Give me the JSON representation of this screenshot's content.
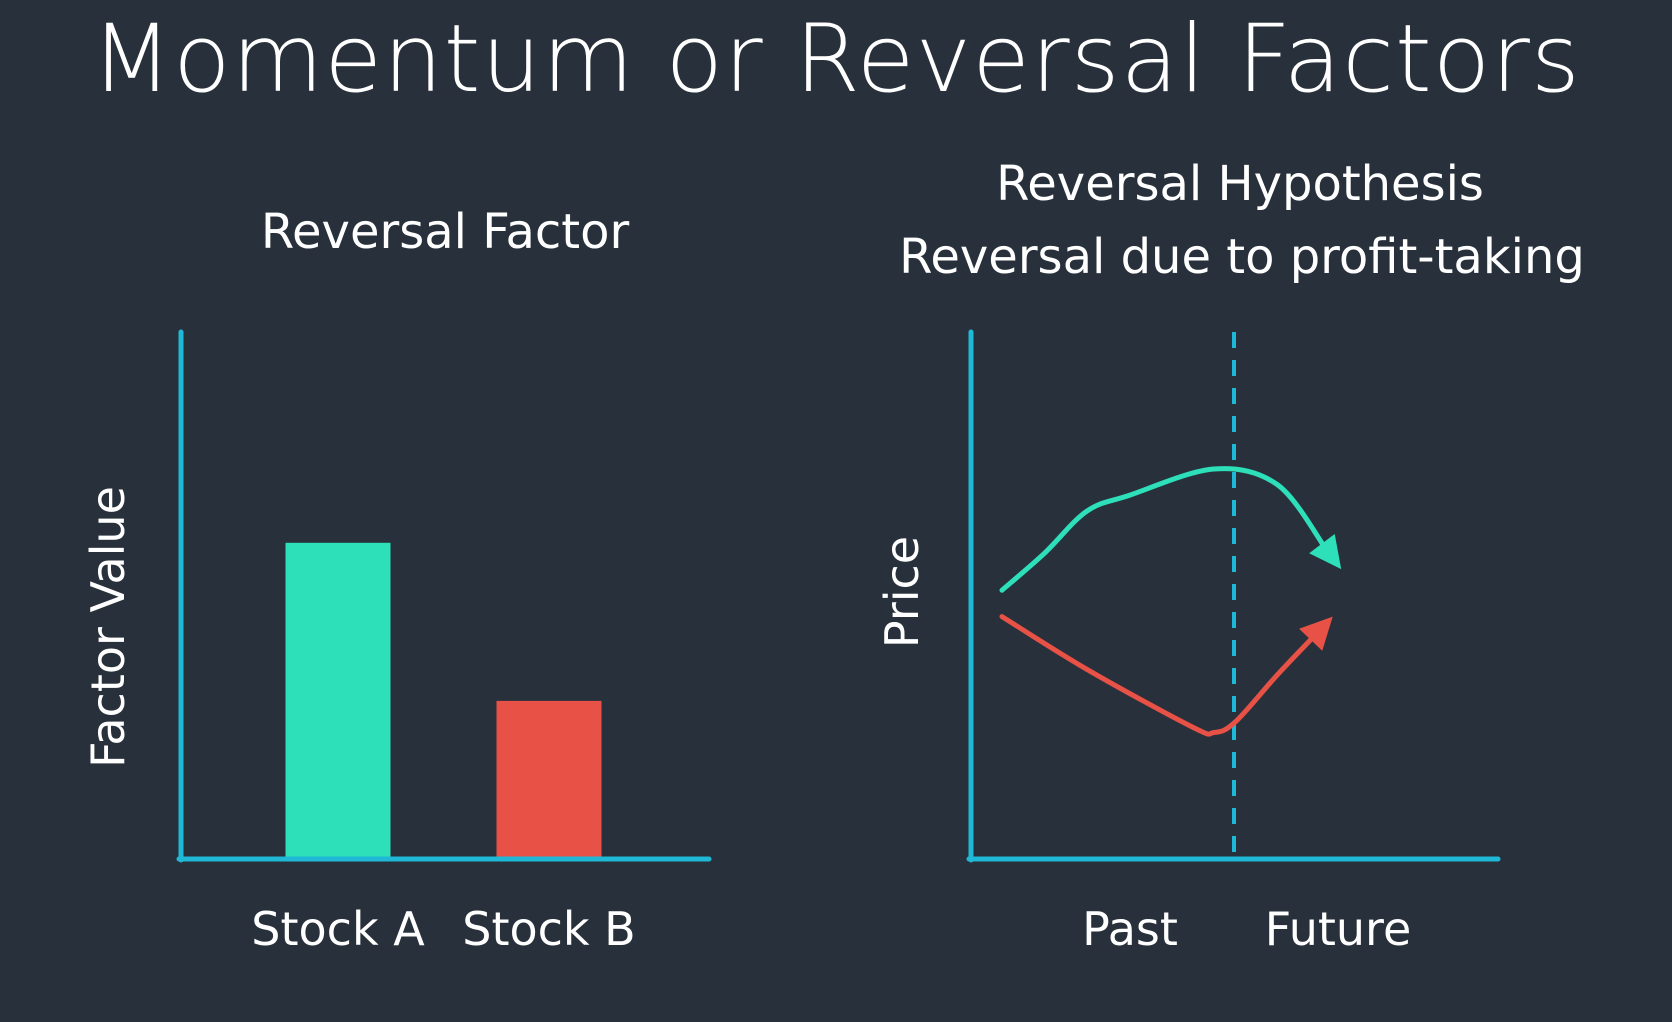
{
  "slide": {
    "title": "Momentum or Reversal Factors"
  },
  "colors": {
    "background": "#28313b",
    "axis": "#1fb8d6",
    "stock_a": "#2de0b9",
    "stock_b": "#e85146",
    "text": "#ffffff"
  },
  "chart_data": [
    {
      "type": "bar",
      "title": "Reversal Factor",
      "ylabel": "Factor Value",
      "xlabel": "",
      "categories": [
        "Stock A",
        "Stock B"
      ],
      "values": [
        0.6,
        0.3
      ],
      "ylim": [
        0,
        1
      ],
      "grid": false,
      "bar_colors": [
        "#2de0b9",
        "#e85146"
      ]
    },
    {
      "type": "line",
      "title": "Reversal Hypothesis",
      "subtitle": "Reversal due to profit-taking",
      "ylabel": "Price",
      "x_regions": [
        "Past",
        "Future"
      ],
      "divider": "dashed vertical line between Past and Future",
      "ylim": [
        0,
        1
      ],
      "grid": false,
      "series": [
        {
          "color": "#2de0b9",
          "arrow_end": true,
          "points": [
            [
              0,
              0.51
            ],
            [
              0.1,
              0.58
            ],
            [
              0.2,
              0.66
            ],
            [
              0.3,
              0.69
            ],
            [
              0.5,
              0.74
            ],
            [
              0.65,
              0.71
            ],
            [
              0.8,
              0.55
            ]
          ]
        },
        {
          "color": "#e85146",
          "arrow_end": true,
          "points": [
            [
              0,
              0.46
            ],
            [
              0.2,
              0.36
            ],
            [
              0.45,
              0.25
            ],
            [
              0.5,
              0.24
            ],
            [
              0.55,
              0.26
            ],
            [
              0.65,
              0.35
            ],
            [
              0.78,
              0.46
            ]
          ]
        }
      ]
    }
  ]
}
